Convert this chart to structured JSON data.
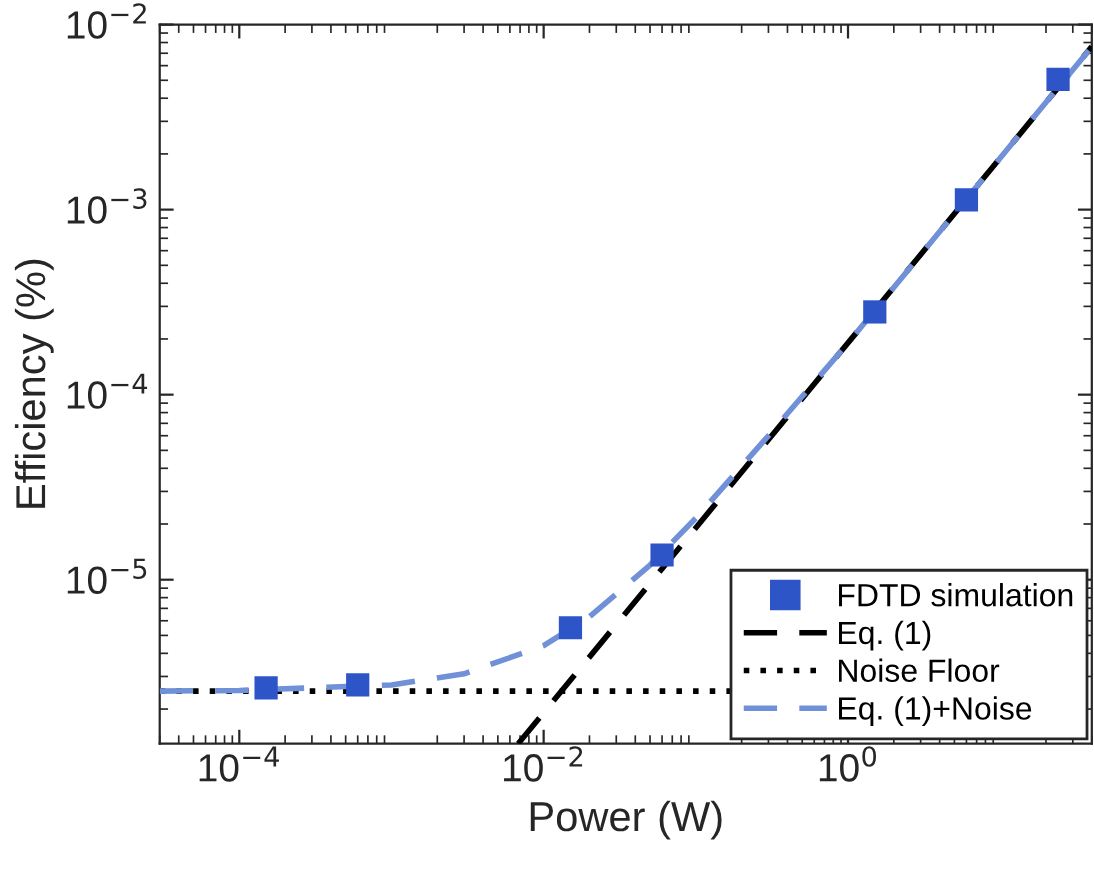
{
  "chart_data": {
    "type": "scatter",
    "xlabel": "Power (W)",
    "ylabel": "Efficiency (%)",
    "log": "xy",
    "xlim": [
      3e-05,
      40
    ],
    "ylim": [
      1.3e-06,
      0.01
    ],
    "xticks": [
      {
        "value": 0.0001,
        "label": "10$^{−4}$"
      },
      {
        "value": 0.01,
        "label": "10$^{−2}$"
      },
      {
        "value": 1,
        "label": "10$^{0}$"
      }
    ],
    "yticks": [
      {
        "value": 1e-05,
        "label": "10$^{−5}$"
      },
      {
        "value": 0.0001,
        "label": "10$^{−4}$"
      },
      {
        "value": 0.001,
        "label": "10$^{−3}$"
      },
      {
        "value": 0.01,
        "label": "10$^{−2}$"
      }
    ],
    "grid": false,
    "legend": "bottom right",
    "series": [
      {
        "name": "FDTD simulation",
        "marker": "square",
        "color": "#2e55c8",
        "x": [
          0.00015,
          0.0006,
          0.015,
          0.06,
          1.5,
          6,
          24
        ],
        "values": [
          2.6e-06,
          2.7e-06,
          5.5e-06,
          1.36e-05,
          0.00028,
          0.00113,
          0.00506
        ]
      },
      {
        "name": "Eq. (1)",
        "type": "line",
        "line_style": "dashed",
        "color": "#000000",
        "x": [
          0.0068,
          40
        ],
        "values": [
          1.3e-06,
          0.0076
        ]
      },
      {
        "name": "Eq. (1)+Noise",
        "type": "line",
        "line_style": "dashed",
        "color": "#7090d8",
        "x": [
          3e-05,
          0.0001,
          0.001,
          0.003,
          0.01,
          0.02,
          0.05,
          0.1,
          0.3,
          1,
          3,
          10,
          40
        ],
        "values": [
          2.5e-06,
          2.52e-06,
          2.7e-06,
          3.1e-06,
          4.4e-06,
          6.3e-06,
          1.2e-05,
          2.15e-05,
          6e-05,
          0.00019,
          0.00057,
          0.0019,
          0.0076
        ]
      }
    ],
    "ref_lines": [
      {
        "axis": "y",
        "value": 2.5e-06,
        "label": "Noise Floor",
        "color": "#000000",
        "line_style": "dotted"
      }
    ]
  }
}
